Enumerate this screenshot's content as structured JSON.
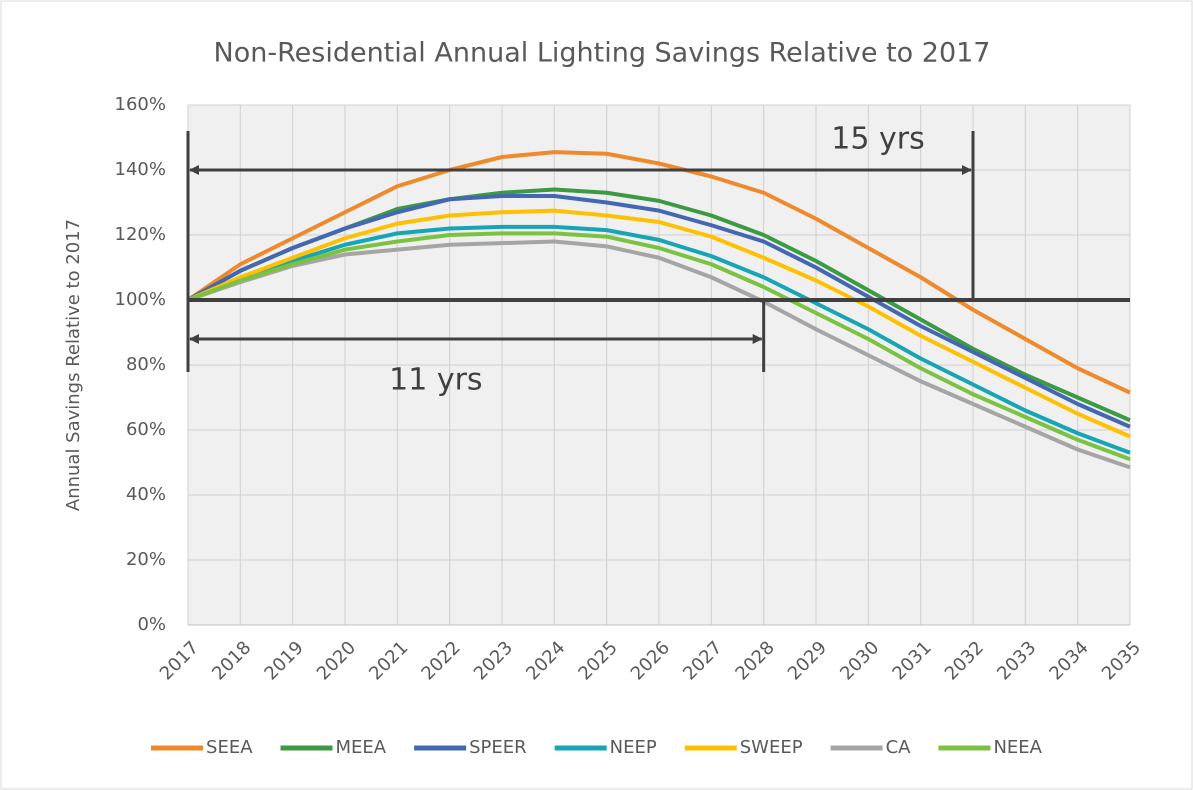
{
  "chart_data": {
    "type": "line",
    "title": "Non-Residential Annual Lighting Savings Relative to 2017",
    "y_label": "Annual Savings Relative to 2017",
    "categories": [
      "2017",
      "2018",
      "2019",
      "2020",
      "2021",
      "2022",
      "2023",
      "2024",
      "2025",
      "2026",
      "2027",
      "2028",
      "2029",
      "2030",
      "2031",
      "2032",
      "2033",
      "2034",
      "2035"
    ],
    "ylim": [
      0,
      160
    ],
    "yticks": [
      {
        "value": 0,
        "label": "0%"
      },
      {
        "value": 20,
        "label": "20%"
      },
      {
        "value": 40,
        "label": "40%"
      },
      {
        "value": 60,
        "label": "60%"
      },
      {
        "value": 80,
        "label": "80%"
      },
      {
        "value": 100,
        "label": "100%"
      },
      {
        "value": 120,
        "label": "120%"
      },
      {
        "value": 140,
        "label": "140%"
      },
      {
        "value": 160,
        "label": "160%"
      }
    ],
    "grid": true,
    "legend": "bottom",
    "reference_line": 100,
    "annotations": [
      {
        "text": "15 yrs",
        "x_from": 2017,
        "x_to": 2032,
        "y": 140
      },
      {
        "text": "11 yrs",
        "x_from": 2017,
        "x_to": 2028,
        "y": 88
      }
    ],
    "series": [
      {
        "name": "SEEA",
        "color": "#ef8a2c",
        "values": [
          100,
          111,
          119,
          127,
          135,
          140,
          144,
          145.5,
          145,
          142,
          138,
          133,
          125,
          116,
          107,
          97,
          88,
          79,
          71.5
        ]
      },
      {
        "name": "MEEA",
        "color": "#3c9a42",
        "values": [
          100,
          109,
          116,
          122,
          128,
          131,
          133,
          134,
          133,
          130.5,
          126,
          120,
          112,
          103,
          94,
          85,
          77,
          70,
          63
        ]
      },
      {
        "name": "SPEER",
        "color": "#4467b3",
        "values": [
          100,
          109,
          116,
          122,
          127,
          131,
          132,
          132,
          130,
          127.5,
          123,
          118,
          110,
          101,
          92,
          84,
          76,
          68,
          61
        ]
      },
      {
        "name": "NEEP",
        "color": "#17a5b6",
        "values": [
          100,
          106,
          112,
          117,
          120.5,
          122,
          122.5,
          122.5,
          121.5,
          118.5,
          113.5,
          107,
          99,
          91,
          82,
          74,
          66,
          59,
          53
        ]
      },
      {
        "name": "SWEEP",
        "color": "#ffc000",
        "values": [
          100,
          107,
          113,
          119,
          123.5,
          126,
          127,
          127.5,
          126,
          124,
          119.5,
          113,
          106,
          98,
          89,
          81,
          73,
          65,
          58
        ]
      },
      {
        "name": "CA",
        "color": "#a5a5a5",
        "values": [
          100,
          105.5,
          110.5,
          114,
          115.5,
          117,
          117.5,
          118,
          116.5,
          113,
          107,
          99.5,
          91,
          83,
          75,
          68,
          61,
          54,
          48.5
        ]
      },
      {
        "name": "NEEA",
        "color": "#7cc242",
        "values": [
          100,
          106,
          111,
          115.5,
          118,
          120,
          120.5,
          120.5,
          119.5,
          116,
          111,
          104,
          96,
          88,
          79,
          71,
          64,
          57,
          51
        ]
      }
    ]
  }
}
